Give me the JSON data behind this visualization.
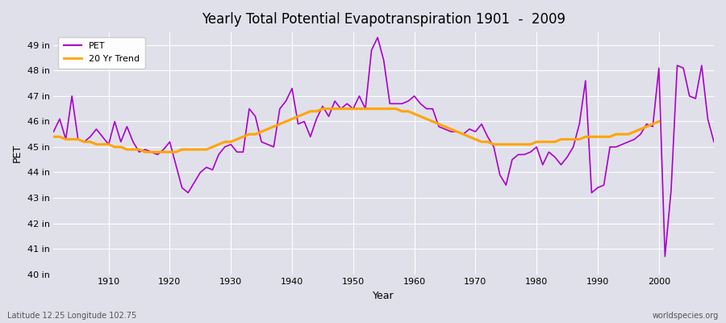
{
  "title": "Yearly Total Potential Evapotranspiration 1901  -  2009",
  "xlabel": "Year",
  "ylabel": "PET",
  "footer_left": "Latitude 12.25 Longitude 102.75",
  "footer_right": "worldspecies.org",
  "pet_color": "#AA00CC",
  "trend_color": "#FFA500",
  "bg_color": "#E0E0EA",
  "plot_bg_color": "#E0E0EA",
  "ylim": [
    40,
    49.5
  ],
  "xlim": [
    1901,
    2009
  ],
  "yticks": [
    40,
    41,
    42,
    43,
    44,
    45,
    46,
    47,
    48,
    49
  ],
  "ytick_labels": [
    "40 in",
    "41 in",
    "42 in",
    "43 in",
    "44 in",
    "45 in",
    "46 in",
    "47 in",
    "48 in",
    "49 in"
  ],
  "xticks": [
    1910,
    1920,
    1930,
    1940,
    1950,
    1960,
    1970,
    1980,
    1990,
    2000
  ],
  "years": [
    1901,
    1902,
    1903,
    1904,
    1905,
    1906,
    1907,
    1908,
    1909,
    1910,
    1911,
    1912,
    1913,
    1914,
    1915,
    1916,
    1917,
    1918,
    1919,
    1920,
    1921,
    1922,
    1923,
    1924,
    1925,
    1926,
    1927,
    1928,
    1929,
    1930,
    1931,
    1932,
    1933,
    1934,
    1935,
    1936,
    1937,
    1938,
    1939,
    1940,
    1941,
    1942,
    1943,
    1944,
    1945,
    1946,
    1947,
    1948,
    1949,
    1950,
    1951,
    1952,
    1953,
    1954,
    1955,
    1956,
    1957,
    1958,
    1959,
    1960,
    1961,
    1962,
    1963,
    1964,
    1965,
    1966,
    1967,
    1968,
    1969,
    1970,
    1971,
    1972,
    1973,
    1974,
    1975,
    1976,
    1977,
    1978,
    1979,
    1980,
    1981,
    1982,
    1983,
    1984,
    1985,
    1986,
    1987,
    1988,
    1989,
    1990,
    1991,
    1992,
    1993,
    1994,
    1995,
    1996,
    1997,
    1998,
    1999,
    2000,
    2001,
    2002,
    2003,
    2004,
    2005,
    2006,
    2007,
    2008,
    2009
  ],
  "pet_values": [
    45.6,
    46.1,
    45.3,
    47.0,
    45.3,
    45.2,
    45.4,
    45.7,
    45.4,
    45.1,
    46.0,
    45.2,
    45.8,
    45.2,
    44.8,
    44.9,
    44.8,
    44.7,
    44.9,
    45.2,
    44.3,
    43.4,
    43.2,
    43.6,
    44.0,
    44.2,
    44.1,
    44.7,
    45.0,
    45.1,
    44.8,
    44.8,
    46.5,
    46.2,
    45.2,
    45.1,
    45.0,
    46.5,
    46.8,
    47.3,
    45.9,
    46.0,
    45.4,
    46.1,
    46.6,
    46.2,
    46.8,
    46.5,
    46.7,
    46.5,
    47.0,
    46.5,
    48.8,
    49.3,
    48.4,
    46.7,
    46.7,
    46.7,
    46.8,
    47.0,
    46.7,
    46.5,
    46.5,
    45.8,
    45.7,
    45.6,
    45.6,
    45.5,
    45.7,
    45.6,
    45.9,
    45.4,
    45.0,
    43.9,
    43.5,
    44.5,
    44.7,
    44.7,
    44.8,
    45.0,
    44.3,
    44.8,
    44.6,
    44.3,
    44.6,
    45.0,
    45.9,
    47.6,
    43.2,
    43.4,
    43.5,
    45.0,
    45.0,
    45.1,
    45.2,
    45.3,
    45.5,
    45.9,
    45.8,
    48.1,
    40.7,
    43.3,
    48.2,
    48.1,
    47.0,
    46.9,
    48.2,
    46.1,
    45.2
  ],
  "trend_values": [
    45.4,
    45.4,
    45.3,
    45.3,
    45.3,
    45.2,
    45.2,
    45.1,
    45.1,
    45.1,
    45.0,
    45.0,
    44.9,
    44.9,
    44.9,
    44.8,
    44.8,
    44.8,
    44.8,
    44.8,
    44.8,
    44.9,
    44.9,
    44.9,
    44.9,
    44.9,
    45.0,
    45.1,
    45.2,
    45.2,
    45.3,
    45.4,
    45.5,
    45.5,
    45.6,
    45.7,
    45.8,
    45.9,
    46.0,
    46.1,
    46.2,
    46.3,
    46.4,
    46.4,
    46.5,
    46.5,
    46.5,
    46.5,
    46.5,
    46.5,
    46.5,
    46.5,
    46.5,
    46.5,
    46.5,
    46.5,
    46.5,
    46.4,
    46.4,
    46.3,
    46.2,
    46.1,
    46.0,
    45.9,
    45.8,
    45.7,
    45.6,
    45.5,
    45.4,
    45.3,
    45.2,
    45.2,
    45.1,
    45.1,
    45.1,
    45.1,
    45.1,
    45.1,
    45.1,
    45.2,
    45.2,
    45.2,
    45.2,
    45.3,
    45.3,
    45.3,
    45.3,
    45.4,
    45.4,
    45.4,
    45.4,
    45.4,
    45.5,
    45.5,
    45.5,
    45.6,
    45.7,
    45.8,
    45.9,
    46.0,
    null,
    null,
    null,
    null,
    null,
    null,
    null,
    null,
    null
  ]
}
